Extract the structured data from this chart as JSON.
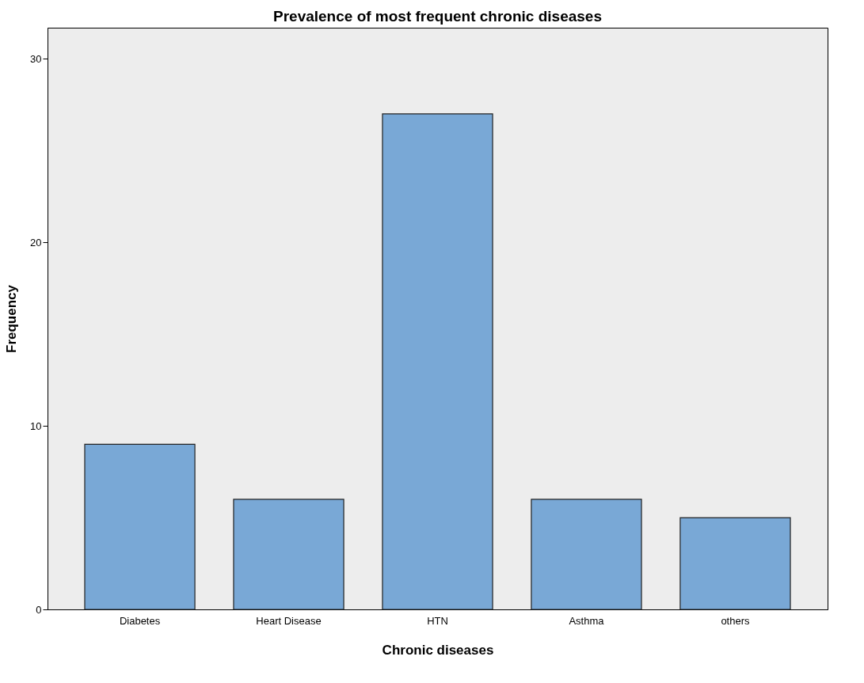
{
  "chart_data": {
    "type": "bar",
    "title": "Prevalence of most frequent chronic diseases",
    "xlabel": "Chronic diseases",
    "ylabel": "Frequency",
    "categories": [
      "Diabetes",
      "Heart Disease",
      "HTN",
      "Asthma",
      "others"
    ],
    "values": [
      9,
      6,
      27,
      6,
      5
    ],
    "color": "#79a8d6",
    "ylim": [
      0,
      31.7
    ],
    "yticks": [
      0,
      10,
      20,
      30
    ],
    "grid": false
  }
}
